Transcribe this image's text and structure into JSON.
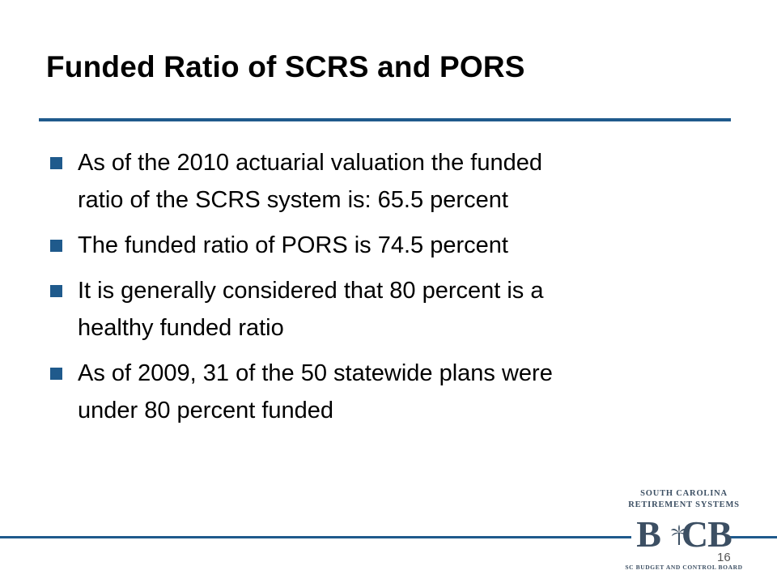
{
  "slide": {
    "title": "Funded Ratio of SCRS and PORS",
    "bullets": [
      {
        "line1": "As of the 2010 actuarial valuation the funded",
        "line2": "ratio of the SCRS system is:  65.5 percent"
      },
      {
        "line1": "The funded ratio of PORS is 74.5 percent",
        "line2": ""
      },
      {
        "line1": "It is generally considered that 80 percent is a",
        "line2": "healthy funded ratio"
      },
      {
        "line1": "As of 2009, 31 of the 50 statewide plans were",
        "line2": "under 80 percent funded"
      }
    ],
    "page_number": "16"
  },
  "logo": {
    "line1": "SOUTH CAROLINA",
    "line2": "RETIREMENT SYSTEMS",
    "mark_left": "B",
    "mark_right": "CB",
    "tagline": "SC BUDGET AND CONTROL BOARD",
    "icon": "palmetto-tree-icon"
  },
  "colors": {
    "accent": "#1f5a8c",
    "logo": "#3c4f63"
  }
}
